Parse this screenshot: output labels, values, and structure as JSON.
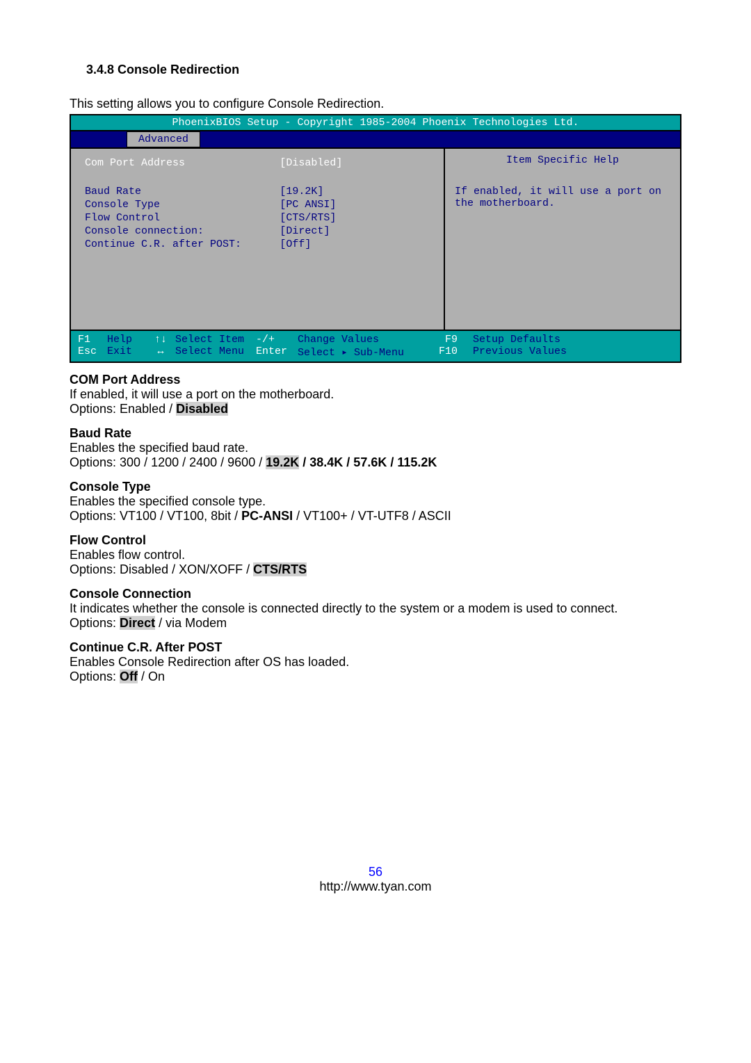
{
  "heading": "3.4.8  Console Redirection",
  "intro": "This setting allows you to configure Console Redirection.",
  "bios": {
    "title": "PhoenixBIOS Setup - Copyright 1985-2004 Phoenix Technologies Ltd.",
    "tab": "Advanced",
    "items": [
      {
        "label": "Com Port Address",
        "value": "[Disabled]",
        "selected": true,
        "gapAfter": true
      },
      {
        "label": "Baud Rate",
        "value": "[19.2K]"
      },
      {
        "label": "Console Type",
        "value": "[PC ANSI]"
      },
      {
        "label": "Flow Control",
        "value": "[CTS/RTS]"
      },
      {
        "label": "Console connection:",
        "value": "[Direct]"
      },
      {
        "label": "Continue C.R. after POST:",
        "value": "[Off]"
      }
    ],
    "help_title": "Item Specific Help",
    "help_text": "If enabled, it will use a port on the motherboard.",
    "footer": {
      "f1": "F1",
      "help": "Help",
      "arrows1": "↑↓",
      "select_item": "Select Item",
      "plusminus": "-/+",
      "change_values": "Change Values",
      "f9": "F9",
      "setup_defaults": "Setup Defaults",
      "esc": "Esc",
      "exit": "Exit",
      "arrows2": "↔",
      "select_menu": "Select Menu",
      "enter": "Enter",
      "select_sub": "Select ▸ Sub-Menu",
      "f10": "F10",
      "prev_values": "Previous Values"
    }
  },
  "doc": {
    "com_port": {
      "h": "COM Port Address",
      "p1": "If enabled, it will use a port on the motherboard.",
      "opt_prefix": "Options: Enabled / ",
      "opt_hl": "Disabled"
    },
    "baud": {
      "h": "Baud Rate",
      "p1": "Enables the specified baud rate.",
      "opt_prefix": "Options: 300 / 1200 / 2400 / 9600 / ",
      "opt_hl": "19.2K",
      "opt_suffix": " / 38.4K / 57.6K / 115.2K"
    },
    "console_type": {
      "h": "Console Type",
      "p1": "Enables the specified console type.",
      "opt_prefix": "Options: VT100 / VT100, 8bit / ",
      "opt_bold": "PC-ANSI",
      "opt_suffix": " / VT100+ / VT-UTF8 / ASCII"
    },
    "flow": {
      "h": "Flow Control",
      "p1": "Enables flow control.",
      "opt_prefix": "Options: Disabled / XON/XOFF / ",
      "opt_hl": "CTS/RTS"
    },
    "conn": {
      "h": "Console Connection",
      "p1": "It indicates whether the console is connected directly to the system or a modem is used to connect.",
      "opt_prefix": "Options: ",
      "opt_hl": "Direct",
      "opt_suffix": " / via Modem"
    },
    "cr": {
      "h": "Continue C.R. After POST",
      "p1": "Enables Console Redirection after OS has loaded.",
      "opt_prefix": "Options: ",
      "opt_hl": "Off",
      "opt_suffix": " / On"
    }
  },
  "page_num": "56",
  "url": "http://www.tyan.com"
}
